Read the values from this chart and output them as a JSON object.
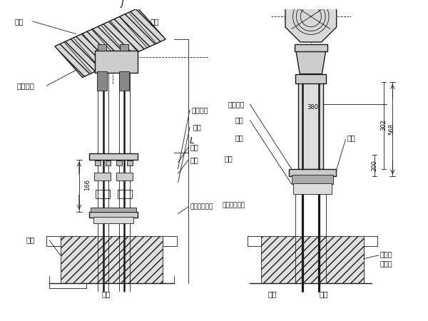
{
  "bg_color": "#ffffff",
  "line_color": "#1a1a1a",
  "labels": {
    "zhu_lan": "主缆",
    "su": "索夹",
    "dang_ti_jia": "套件挂架",
    "diao_su_jiaju": "吊索夹具",
    "diao_suo": "吊索",
    "luo_mu": "螺母",
    "ban_ban": "锚板",
    "fang_shui": "防水覆盆垫件",
    "cheng_zuo": "承座",
    "di_ban": "地板",
    "hun_ning_tu": "混凝土",
    "bao_hu_ceng": "包护层",
    "di_quan": "地圈",
    "mao_gan": "锚杆",
    "dian_tou": "垫圈",
    "dim_380": "380",
    "dim_166": "166",
    "dim_568": "568",
    "dim_302": "302",
    "dim_200": "200",
    "letter_j": "J",
    "letter_l": "L"
  }
}
